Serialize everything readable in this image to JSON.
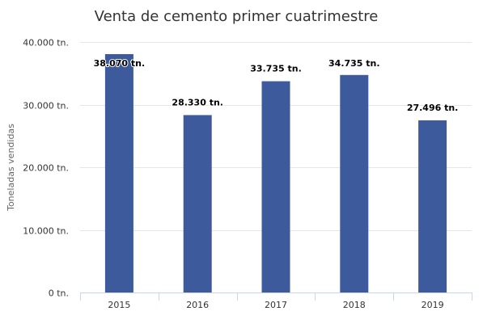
{
  "chart_data": {
    "type": "bar",
    "title": "Venta de cemento primer cuatrimestre",
    "xlabel": "",
    "ylabel": "Toneladas vendidas",
    "categories": [
      "2015",
      "2016",
      "2017",
      "2018",
      "2019"
    ],
    "values": [
      38070,
      28330,
      33735,
      34735,
      27496
    ],
    "data_labels": [
      "38.070 tn.",
      "28.330 tn.",
      "33.735 tn.",
      "34.735 tn.",
      "27.496 tn."
    ],
    "ylim": [
      0,
      40000
    ],
    "yticks": [
      0,
      10000,
      20000,
      30000,
      40000
    ],
    "ytick_labels": [
      "0 tn.",
      "10.000 tn.",
      "20.000 tn.",
      "30.000 tn.",
      "40.000 tn."
    ],
    "grid": true,
    "legend": "none",
    "bar_color": "#3d5a9c"
  }
}
